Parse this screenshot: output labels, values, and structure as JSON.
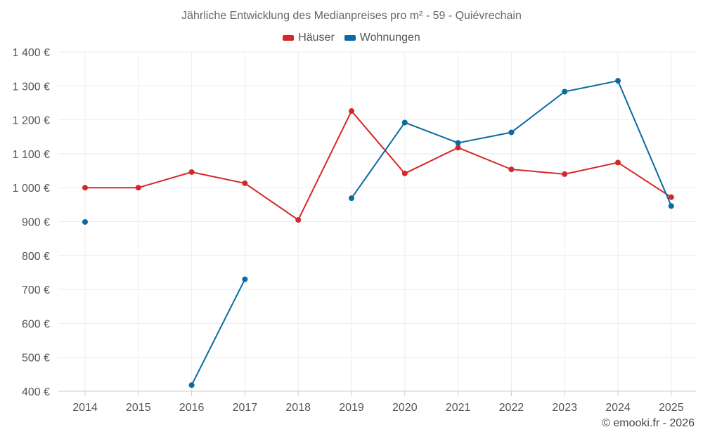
{
  "chart_data": {
    "type": "line",
    "title": "Jährliche Entwicklung des Medianpreises pro m² - 59 - Quiévrechain",
    "categories": [
      "2014",
      "2015",
      "2016",
      "2017",
      "2018",
      "2019",
      "2020",
      "2021",
      "2022",
      "2023",
      "2024",
      "2025"
    ],
    "ylim": [
      400,
      1400
    ],
    "yticks": [
      400,
      500,
      600,
      700,
      800,
      900,
      1000,
      1100,
      1200,
      1300,
      1400
    ],
    "ytick_labels": [
      "400 €",
      "500 €",
      "600 €",
      "700 €",
      "800 €",
      "900 €",
      "1 000 €",
      "1 100 €",
      "1 200 €",
      "1 300 €",
      "1 400 €"
    ],
    "grid": true,
    "legend_position": "top-center",
    "series": [
      {
        "name": "Häuser",
        "color": "#d62728",
        "values": [
          1000,
          1000,
          1046,
          1013,
          905,
          1226,
          1042,
          1118,
          1054,
          1040,
          1074,
          972
        ]
      },
      {
        "name": "Wohnungen",
        "color": "#0a6aa1",
        "values": [
          899,
          null,
          418,
          730,
          null,
          969,
          1192,
          1132,
          1163,
          1283,
          1315,
          946
        ]
      }
    ]
  },
  "footer": {
    "credit": "© emooki.fr - 2026"
  }
}
